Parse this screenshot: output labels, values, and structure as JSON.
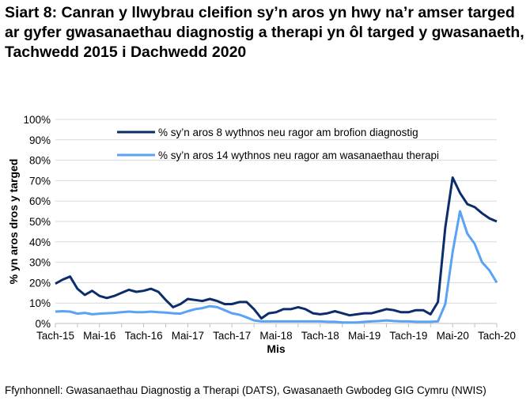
{
  "chart_data": {
    "type": "line",
    "title": "Siart 8: Canran y llwybrau cleifion sy’n aros yn hwy na’r amser targed ar gyfer gwasanaethau diagnostig a therapi yn ôl targed y gwasanaeth, Tachwedd 2015 i Dachwedd 2020",
    "xlabel": "Mis",
    "ylabel": "% yn aros dros y targed",
    "ylim": [
      0,
      100
    ],
    "yticks": [
      "0%",
      "10%",
      "20%",
      "30%",
      "40%",
      "50%",
      "60%",
      "70%",
      "80%",
      "90%",
      "100%"
    ],
    "xtick_labels": [
      "Tach-15",
      "Mai-16",
      "Tach-16",
      "Mai-17",
      "Tach-17",
      "Mai-18",
      "Tach-18",
      "Mai-19",
      "Tach-19",
      "Mai-20",
      "Tach-20"
    ],
    "x_range": [
      "Tach-15",
      "Tach-20"
    ],
    "grid": "horizontal",
    "legend_placement": "top",
    "series": [
      {
        "name": "% sy’n aros 8 wythnos neu ragor am brofion diagnostig",
        "color": "#0b2d6b",
        "values": [
          19.5,
          21.5,
          23,
          17,
          14,
          16,
          13.5,
          12.5,
          13.5,
          15,
          16.5,
          15.5,
          16,
          17,
          15.5,
          11.5,
          8,
          9.5,
          12,
          11.5,
          11,
          12,
          11,
          9.5,
          9.5,
          10.5,
          10.5,
          7,
          2.5,
          5,
          5.5,
          7,
          7,
          8,
          7,
          5,
          4.5,
          5,
          6,
          5,
          4,
          4.5,
          5,
          5,
          6,
          7,
          6.5,
          5.5,
          5.5,
          6.5,
          6.5,
          4.5,
          10.5,
          47,
          71.5,
          64,
          58.5,
          57,
          54,
          51.5,
          50
        ]
      },
      {
        "name": "% sy’n aros 14 wythnos neu ragor am wasanaethau therapi",
        "color": "#5aa2f5",
        "values": [
          5.8,
          6,
          5.8,
          4.8,
          5.2,
          4.5,
          4.8,
          5,
          5.2,
          5.5,
          5.8,
          5.5,
          5.5,
          5.8,
          5.5,
          5.3,
          5,
          4.8,
          6,
          7,
          7.5,
          8.5,
          8,
          6.5,
          5,
          4.3,
          3,
          1.5,
          1,
          1,
          1,
          1,
          1,
          1,
          1,
          1,
          1,
          0.8,
          0.8,
          0.5,
          0.5,
          0.5,
          0.8,
          1,
          1.2,
          1.5,
          1.2,
          1,
          1,
          0.8,
          0.8,
          0.8,
          1,
          9.5,
          35,
          55,
          44,
          39,
          30,
          26,
          20
        ]
      }
    ]
  },
  "source": "Ffynhonnell: Gwasanaethau Diagnostig a Therapi (DATS), Gwasanaeth Gwbodeg GIG Cymru (NWIS)"
}
